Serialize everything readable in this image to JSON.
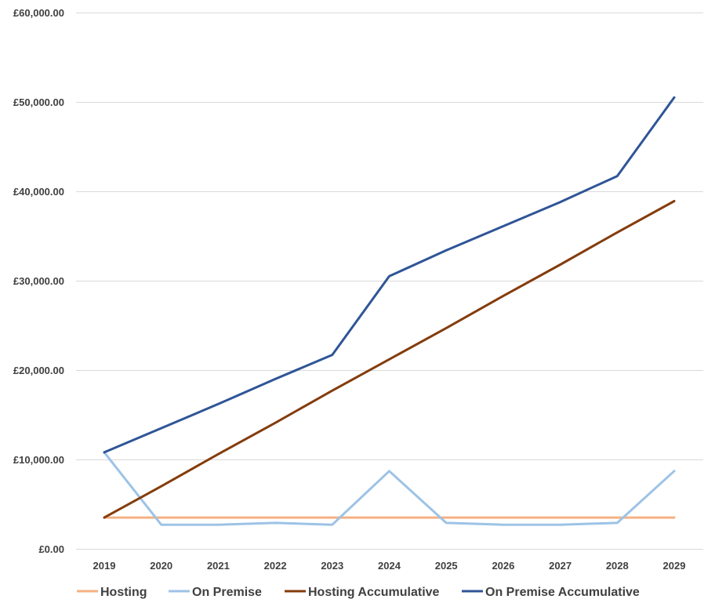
{
  "chart_data": {
    "type": "line",
    "title": "",
    "xlabel": "",
    "ylabel": "",
    "categories": [
      "2019",
      "2020",
      "2021",
      "2022",
      "2023",
      "2024",
      "2025",
      "2026",
      "2027",
      "2028",
      "2029"
    ],
    "ylim": [
      0,
      60000
    ],
    "yticks": [
      0,
      10000,
      20000,
      30000,
      40000,
      50000,
      60000
    ],
    "ytick_labels": [
      "£0.00",
      "£10,000.00",
      "£20,000.00",
      "£30,000.00",
      "£40,000.00",
      "£50,000.00",
      "£60,000.00"
    ],
    "grid": true,
    "legend_position": "bottom",
    "series": [
      {
        "name": "Hosting",
        "color": "#F4B183",
        "values": [
          3500,
          3500,
          3500,
          3500,
          3500,
          3500,
          3500,
          3500,
          3500,
          3500,
          3500
        ]
      },
      {
        "name": "On Premise",
        "color": "#9DC3E6",
        "values": [
          10800,
          2700,
          2700,
          2900,
          2700,
          8700,
          2900,
          2700,
          2700,
          2900,
          8700
        ]
      },
      {
        "name": "Hosting Accumulative",
        "color": "#843C0C",
        "values": [
          3500,
          7000,
          10600,
          14100,
          17700,
          21200,
          24700,
          28300,
          31800,
          35400,
          38900
        ]
      },
      {
        "name": "On Premise Accumulative",
        "color": "#2F5597",
        "values": [
          10800,
          13500,
          16200,
          19000,
          21700,
          30500,
          33400,
          36100,
          38800,
          41700,
          50500
        ]
      }
    ]
  }
}
